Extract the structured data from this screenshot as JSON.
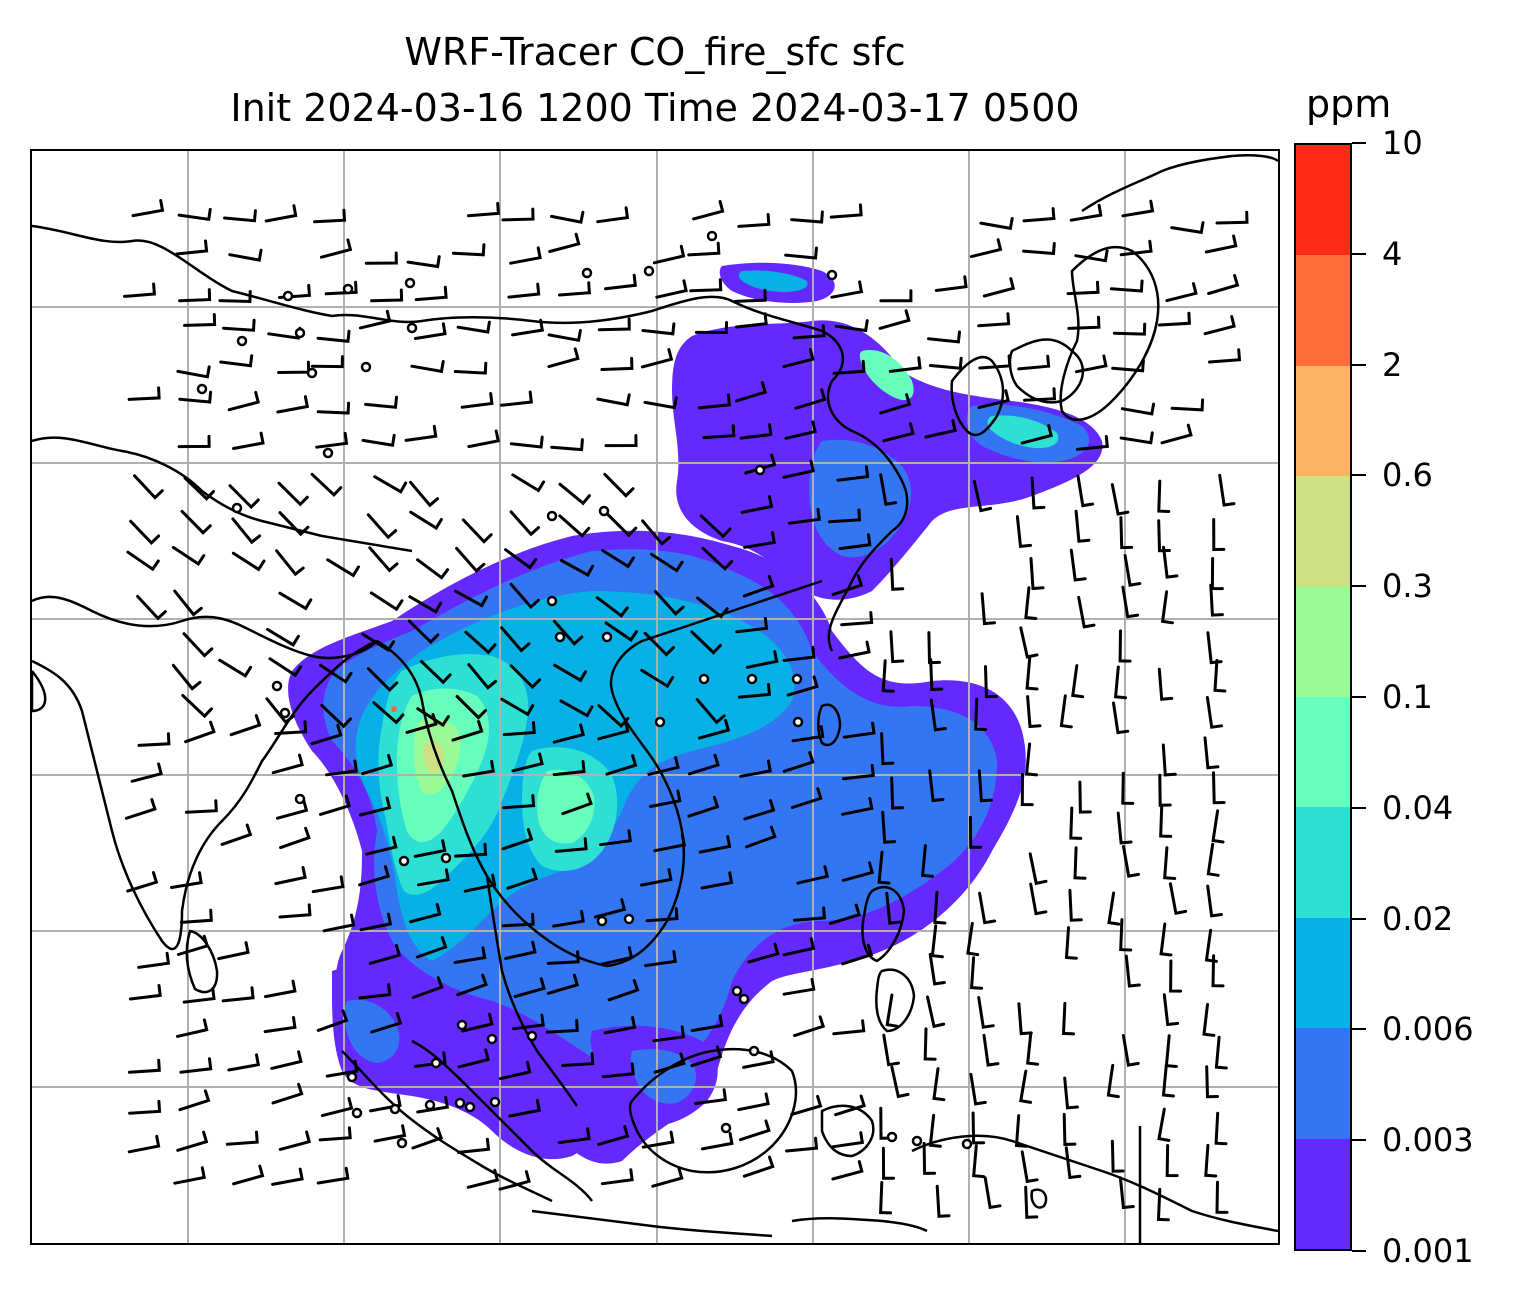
{
  "title": {
    "line1": "WRF-Tracer CO_fire_sfc sfc",
    "line2": "Init 2024-03-16 1200 Time 2024-03-17 0500"
  },
  "colorbar": {
    "unit": "ppm",
    "levels": [
      "0.001",
      "0.003",
      "0.006",
      "0.02",
      "0.04",
      "0.1",
      "0.3",
      "0.6",
      "2",
      "4",
      "10"
    ],
    "colors": [
      "#6429fd",
      "#3476f1",
      "#07b1e6",
      "#2edfd4",
      "#67fdbd",
      "#9afa96",
      "#cde083",
      "#fdb266",
      "#fe6e3c",
      "#fe2a16"
    ]
  },
  "map": {
    "gridlines": true,
    "gridline_color": "#b0b0b0",
    "coastline_color": "#000000",
    "features": [
      "coastlines",
      "country-borders",
      "wind-barbs",
      "calm-wind-circles",
      "co-fire-plume"
    ]
  }
}
